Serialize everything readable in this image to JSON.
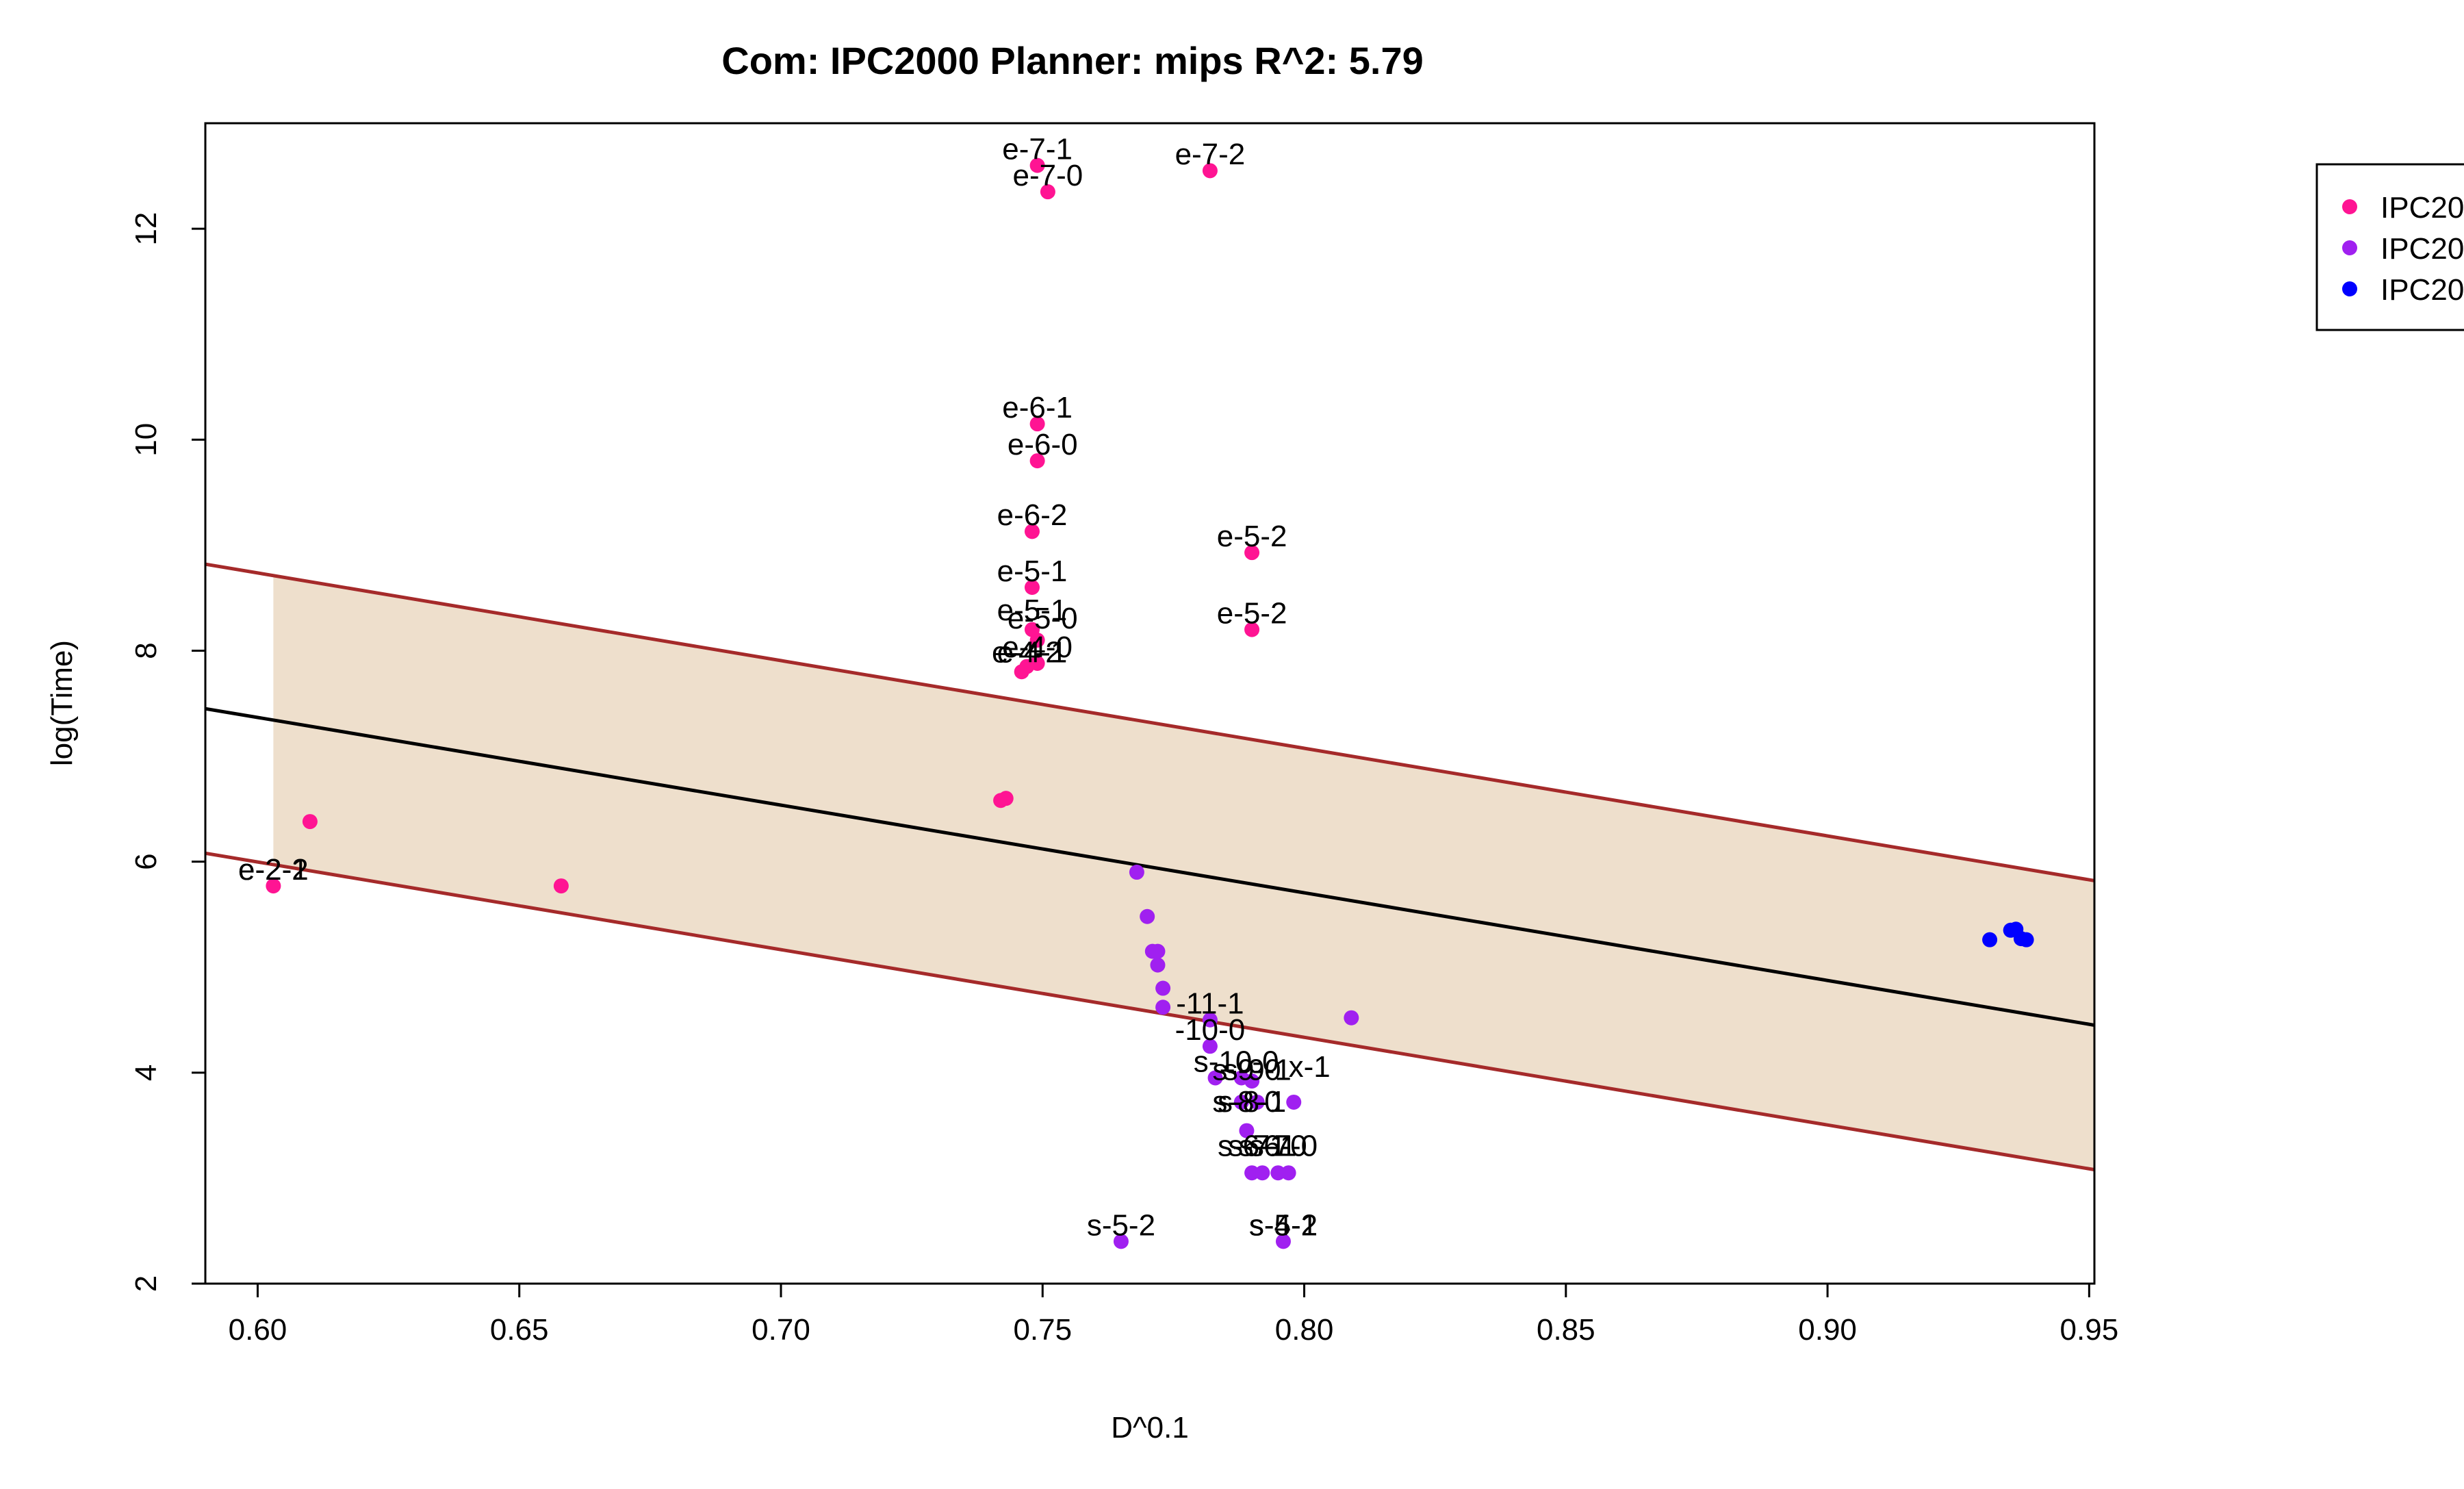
{
  "chart_data": {
    "type": "scatter",
    "title": "Com: IPC2000 Planner: mips R^2: 5.79",
    "xlabel": "D^0.1",
    "ylabel": "log(Time)",
    "xlim": [
      0.59,
      0.951
    ],
    "ylim": [
      2.0,
      13.0
    ],
    "x_ticks": [
      "0.60",
      "0.65",
      "0.70",
      "0.75",
      "0.80",
      "0.85",
      "0.90",
      "0.95"
    ],
    "y_ticks": [
      "2",
      "4",
      "6",
      "8",
      "10",
      "12"
    ],
    "grid": false,
    "legend_position": "right (clipped at image edge)",
    "legend": [
      {
        "label": "IPC20",
        "color": "#ff1493"
      },
      {
        "label": "IPC20",
        "color": "#a020f0"
      },
      {
        "label": "IPC20",
        "color": "#0000ff"
      }
    ],
    "colors": {
      "band_fill": "#eedfcc",
      "band_edge": "#a52a2a",
      "fit_line": "#000000"
    },
    "regression": {
      "fit": {
        "x": [
          0.59,
          0.951
        ],
        "y": [
          7.45,
          4.45
        ]
      },
      "upper": {
        "x": [
          0.59,
          0.951
        ],
        "y": [
          8.82,
          5.82
        ]
      },
      "lower": {
        "x": [
          0.59,
          0.951
        ],
        "y": [
          6.08,
          3.08
        ]
      },
      "band_x_range": [
        0.603,
        0.951
      ]
    },
    "series": [
      {
        "color": "#ff1493",
        "points": [
          {
            "x": 0.749,
            "y": 12.6
          },
          {
            "x": 0.751,
            "y": 12.35
          },
          {
            "x": 0.782,
            "y": 12.55
          },
          {
            "x": 0.749,
            "y": 10.15
          },
          {
            "x": 0.749,
            "y": 9.8
          },
          {
            "x": 0.748,
            "y": 9.13
          },
          {
            "x": 0.79,
            "y": 8.93
          },
          {
            "x": 0.748,
            "y": 8.6
          },
          {
            "x": 0.79,
            "y": 8.2
          },
          {
            "x": 0.748,
            "y": 8.2
          },
          {
            "x": 0.749,
            "y": 8.1
          },
          {
            "x": 0.749,
            "y": 7.88
          },
          {
            "x": 0.747,
            "y": 7.85
          },
          {
            "x": 0.746,
            "y": 7.8
          },
          {
            "x": 0.742,
            "y": 6.58
          },
          {
            "x": 0.743,
            "y": 6.6
          },
          {
            "x": 0.61,
            "y": 6.38
          },
          {
            "x": 0.603,
            "y": 5.77
          },
          {
            "x": 0.658,
            "y": 5.77
          }
        ]
      },
      {
        "color": "#a020f0",
        "points": [
          {
            "x": 0.768,
            "y": 5.9
          },
          {
            "x": 0.77,
            "y": 5.48
          },
          {
            "x": 0.771,
            "y": 5.15
          },
          {
            "x": 0.772,
            "y": 5.15
          },
          {
            "x": 0.772,
            "y": 5.02
          },
          {
            "x": 0.773,
            "y": 4.8
          },
          {
            "x": 0.773,
            "y": 4.62
          },
          {
            "x": 0.782,
            "y": 4.5
          },
          {
            "x": 0.809,
            "y": 4.52
          },
          {
            "x": 0.782,
            "y": 4.25
          },
          {
            "x": 0.783,
            "y": 3.95
          },
          {
            "x": 0.788,
            "y": 3.95
          },
          {
            "x": 0.79,
            "y": 3.92
          },
          {
            "x": 0.788,
            "y": 3.72
          },
          {
            "x": 0.791,
            "y": 3.72
          },
          {
            "x": 0.798,
            "y": 3.72
          },
          {
            "x": 0.789,
            "y": 3.45
          },
          {
            "x": 0.79,
            "y": 3.05
          },
          {
            "x": 0.792,
            "y": 3.05
          },
          {
            "x": 0.795,
            "y": 3.05
          },
          {
            "x": 0.797,
            "y": 3.05
          },
          {
            "x": 0.765,
            "y": 2.4
          },
          {
            "x": 0.796,
            "y": 2.4
          }
        ]
      },
      {
        "color": "#0000ff",
        "points": [
          {
            "x": 0.931,
            "y": 5.26
          },
          {
            "x": 0.935,
            "y": 5.35
          },
          {
            "x": 0.936,
            "y": 5.36
          },
          {
            "x": 0.937,
            "y": 5.27
          },
          {
            "x": 0.938,
            "y": 5.26
          }
        ]
      }
    ],
    "labels": [
      {
        "text": "e-7-1",
        "x": 0.749,
        "y": 12.75
      },
      {
        "text": "e-7-0",
        "x": 0.751,
        "y": 12.5
      },
      {
        "text": "e-7-2",
        "x": 0.782,
        "y": 12.7
      },
      {
        "text": "e-6-1",
        "x": 0.749,
        "y": 10.3
      },
      {
        "text": "e-6-0",
        "x": 0.75,
        "y": 9.95
      },
      {
        "text": "e-6-2",
        "x": 0.748,
        "y": 9.28
      },
      {
        "text": "e-5-2",
        "x": 0.79,
        "y": 9.08
      },
      {
        "text": "e-5-1",
        "x": 0.748,
        "y": 8.75
      },
      {
        "text": "e-5-2",
        "x": 0.79,
        "y": 8.35
      },
      {
        "text": "e-5-1",
        "x": 0.748,
        "y": 8.38
      },
      {
        "text": "e-5-0",
        "x": 0.75,
        "y": 8.3
      },
      {
        "text": "e-4-0",
        "x": 0.749,
        "y": 8.03
      },
      {
        "text": "e-4-1",
        "x": 0.748,
        "y": 7.98
      },
      {
        "text": "e-4-2",
        "x": 0.747,
        "y": 7.98
      },
      {
        "text": "e-2-1",
        "x": 0.603,
        "y": 5.92
      },
      {
        "text": "e-2-2",
        "x": 0.603,
        "y": 5.92
      },
      {
        "text": "-11-1",
        "x": 0.782,
        "y": 4.65
      },
      {
        "text": "-10-0",
        "x": 0.782,
        "y": 4.4
      },
      {
        "text": "s-10-0",
        "x": 0.787,
        "y": 4.1
      },
      {
        "text": "s-9-0",
        "x": 0.789,
        "y": 4.02
      },
      {
        "text": "s-9-1",
        "x": 0.791,
        "y": 4.02
      },
      {
        "text": "x-1",
        "x": 0.801,
        "y": 4.05
      },
      {
        "text": "s-8-0",
        "x": 0.789,
        "y": 3.72
      },
      {
        "text": "s-8-1",
        "x": 0.79,
        "y": 3.72
      },
      {
        "text": "s-6-1",
        "x": 0.79,
        "y": 3.3
      },
      {
        "text": "s-7-1",
        "x": 0.792,
        "y": 3.3
      },
      {
        "text": "s-6-0",
        "x": 0.794,
        "y": 3.3
      },
      {
        "text": "s-7-0",
        "x": 0.796,
        "y": 3.3
      },
      {
        "text": "s-5-2",
        "x": 0.765,
        "y": 2.55
      },
      {
        "text": "s-5-1",
        "x": 0.796,
        "y": 2.55
      },
      {
        "text": "s-4-2",
        "x": 0.796,
        "y": 2.55
      }
    ]
  }
}
